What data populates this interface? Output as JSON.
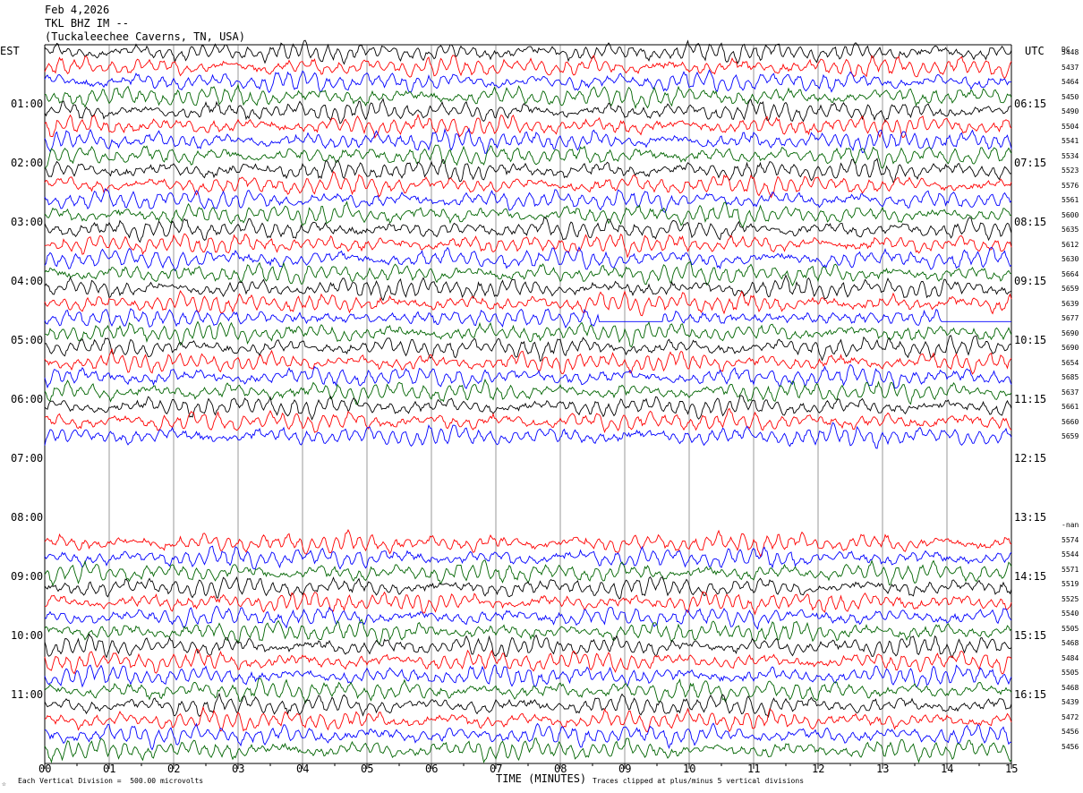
{
  "header": {
    "date": "Feb 4,2026",
    "station": "TKL BHZ IM --",
    "location": "(Tuckaleechee Caverns, TN, USA)"
  },
  "left_axis_title": "EST",
  "right_axis_title": "UTC",
  "dc_title": "DC",
  "left_hour_labels": [
    "01:00",
    "02:00",
    "03:00",
    "04:00",
    "05:00",
    "06:00",
    "07:00",
    "08:00",
    "09:00",
    "10:00",
    "11:00"
  ],
  "right_hour_labels": [
    "06:15",
    "07:15",
    "08:15",
    "09:15",
    "10:15",
    "11:15",
    "12:15",
    "13:15",
    "14:15",
    "15:15",
    "16:15"
  ],
  "x_ticks": [
    "00",
    "01",
    "02",
    "03",
    "04",
    "05",
    "06",
    "07",
    "08",
    "09",
    "10",
    "11",
    "12",
    "13",
    "14",
    "15"
  ],
  "x_axis_label": "TIME (MINUTES)",
  "footer": {
    "scale_note": "Each Vertical Division =  500.00 microvolts",
    "clip_note": "Traces clipped at plus/minus 5 vertical divisions",
    "corner_mark": "☆"
  },
  "dc_values_block1": [
    "5448",
    "5437",
    "5464",
    "5450",
    "5490",
    "5504",
    "5541",
    "5534",
    "5523",
    "5576",
    "5561",
    "5600",
    "5635",
    "5612",
    "5630",
    "5664",
    "5659",
    "5639",
    "5677",
    "5690",
    "5690",
    "5654",
    "5685",
    "5637",
    "5661",
    "5660",
    "5659"
  ],
  "dc_values_block2": [
    "-nan",
    "5574",
    "5544",
    "5571",
    "5519",
    "5525",
    "5540",
    "5505",
    "5468",
    "5484",
    "5505",
    "5468",
    "5439",
    "5472",
    "5456",
    "5456"
  ],
  "colors": {
    "trace_cycle": [
      "#000000",
      "#ff0000",
      "#0000ff",
      "#006400"
    ],
    "grid": "#000000"
  },
  "chart_data": {
    "type": "line",
    "title": "TKL BHZ IM --",
    "xlabel": "TIME (MINUTES)",
    "xlim": [
      0,
      15
    ],
    "trace_minutes_per_line": 15,
    "lines_per_hour": 4,
    "block1": {
      "first_label": "EST 00:45",
      "line_count": 27,
      "colors_start": "black"
    },
    "data_gap": {
      "from_line_label": "06:30",
      "to_line_label": "07:45"
    },
    "block2": {
      "first_label": "EST 08:00",
      "line_count": 16,
      "colors_start": "red"
    },
    "scale_microvolts_per_division": 500.0,
    "clip_divisions": 5,
    "flat_segments": [
      {
        "line_index": 18,
        "from_min": 8.6,
        "to_min": 9.6
      },
      {
        "line_index": 18,
        "from_min": 13.9,
        "to_min": 15.0
      }
    ]
  }
}
